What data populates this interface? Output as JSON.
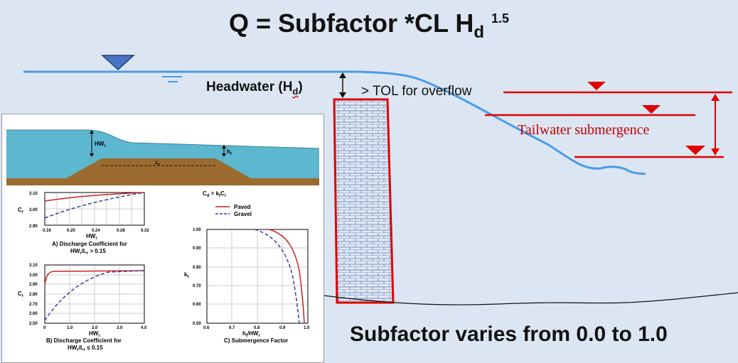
{
  "title": {
    "main": "Q =  Subfactor *CL H",
    "sub": "d",
    "sup": "1.5"
  },
  "labels": {
    "headwater": "Headwater (H",
    "headwater_sub": "d",
    "headwater_close": ")",
    "tol": "> TOL for overflow",
    "tailwater": "Tailwater submergence",
    "subfactor_range": "Subfactor varies from 0.0 to 1.0"
  },
  "inset": {
    "profile": {
      "hw_label": "HW",
      "hw_sub": "r",
      "ht_label": "h",
      "ht_sub": "t",
      "l_label": "L",
      "l_sub": "r"
    },
    "chart_a": {
      "ylabel": "C",
      "ylabel_sub": "r",
      "yticks": [
        "3.10",
        "3.00",
        "2.90"
      ],
      "xticks": [
        "0.16",
        "0.20",
        "0.24",
        "0.28",
        "0.32"
      ],
      "xlabel": "HW",
      "xlabel_sub": "r",
      "caption1": "A)  Discharge Coefficient for",
      "caption2": "HW",
      "caption2_sub": "r",
      "caption2_tail": "/L",
      "caption2_sub2": "r",
      "caption2_end": " > 0.15"
    },
    "chart_b": {
      "ylabel": "C",
      "ylabel_sub": "r",
      "yticks": [
        "3.10",
        "3.00",
        "2.90",
        "2.80",
        "2.70",
        "2.60",
        "2.50"
      ],
      "xticks": [
        "0",
        "1.0",
        "2.0",
        "3.0",
        "4.0"
      ],
      "xlabel": "HW",
      "xlabel_sub": "r",
      "caption1": "B)  Discharge Coefficient for",
      "caption2": "HW",
      "caption2_sub": "r",
      "caption2_tail": "/L",
      "caption2_sub2": "r",
      "caption2_end": " ≤ 0.15"
    },
    "chart_c": {
      "formula": "C",
      "formula_sub": "d",
      "formula_mid": " = k",
      "formula_sub2": "t",
      "formula_mid2": "C",
      "formula_sub3": "r",
      "legend": [
        "Paved",
        "Gravel"
      ],
      "ylabel": "k",
      "ylabel_sub": "t",
      "yticks": [
        "1.00",
        "0.90",
        "0.80",
        "0.70",
        "0.60",
        "0.50"
      ],
      "xticks": [
        "0.6",
        "0.7",
        "0.8",
        "0.9",
        "1.0"
      ],
      "xlabel": "h",
      "xlabel_sub": "t",
      "xlabel_tail": "/HW",
      "xlabel_sub2": "r",
      "caption": "C)  Submergence Factor"
    }
  },
  "colors": {
    "water": "#4a9be8",
    "tailwater": "#e00000",
    "paved": "#cc2222",
    "gravel": "#3a3f9e",
    "inset_water": "#5db7cf",
    "embankment": "#9b6a2e"
  }
}
